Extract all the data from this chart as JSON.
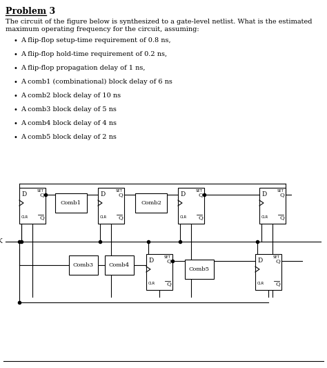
{
  "title": "Problem 3",
  "bg_color": "#ffffff",
  "text_color": "#000000",
  "problem_text_line1": "The circuit of the figure below is synthesized to a gate-level netlist. What is the estimated",
  "problem_text_line2": "maximum operating frequency for the circuit, assuming:",
  "bullets": [
    "A flip-flop setup-time requirement of 0.8 ns,",
    "A flip-flop hold-time requirement of 0.2 ns,",
    "A flip-flop propagation delay of 1 ns,",
    "A comb1 (combinational) block delay of 6 ns",
    "A comb2 block delay of 10 ns",
    "A comb3 block delay of 5 ns",
    "A comb4 block delay of 4 ns",
    "A comb5 block delay of 2 ns"
  ],
  "figsize": [
    4.74,
    5.33
  ],
  "dpi": 100
}
